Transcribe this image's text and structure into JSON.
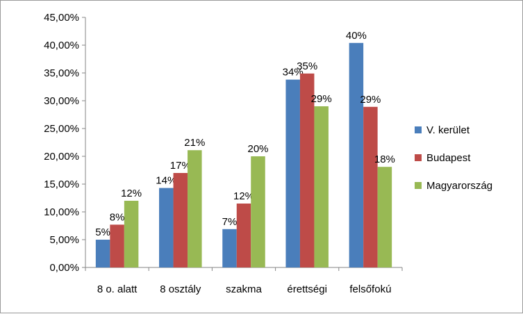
{
  "chart_data": {
    "type": "bar",
    "categories": [
      "8 o. alatt",
      "8 osztály",
      "szakma",
      "érettségi",
      "felsőfokú"
    ],
    "series": [
      {
        "name": "V. kerület",
        "color": "#4a7ebb",
        "values": [
          0.05,
          0.143,
          0.069,
          0.338,
          0.404
        ],
        "labels": [
          "5%",
          "14%",
          "7%",
          "34%",
          "40%"
        ]
      },
      {
        "name": "Budapest",
        "color": "#be4b48",
        "values": [
          0.077,
          0.17,
          0.115,
          0.349,
          0.289
        ],
        "labels": [
          "8%",
          "17%",
          "12%",
          "35%",
          "29%"
        ]
      },
      {
        "name": "Magyarország",
        "color": "#98b954",
        "values": [
          0.12,
          0.211,
          0.2,
          0.29,
          0.181
        ],
        "labels": [
          "12%",
          "21%",
          "20%",
          "29%",
          "18%"
        ]
      }
    ],
    "y_ticks": [
      "0,00%",
      "5,00%",
      "10,00%",
      "15,00%",
      "20,00%",
      "25,00%",
      "30,00%",
      "35,00%",
      "40,00%",
      "45,00%"
    ],
    "ylim": [
      0,
      0.45
    ],
    "title": "",
    "xlabel": "",
    "ylabel": "",
    "grid": false,
    "legend_position": "right"
  }
}
